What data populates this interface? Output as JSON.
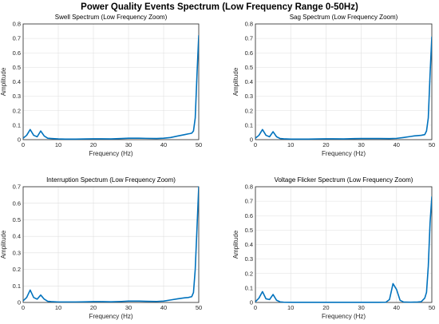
{
  "title": "Power Quality Events Spectrum (Low Frequency Range 0-50Hz)",
  "colors": {
    "line": "#0072BD",
    "grid": "#dfdfdf",
    "axis": "#262626"
  },
  "chart_data": [
    {
      "type": "line",
      "title": "Swell Spectrum (Low Frequency Zoom)",
      "xlabel": "Frequency (Hz)",
      "ylabel": "Amplitude",
      "xlim": [
        0,
        50
      ],
      "ylim": [
        0,
        0.8
      ],
      "xticks": [
        "0",
        "10",
        "20",
        "30",
        "40",
        "50"
      ],
      "yticks": [
        "0",
        "0.1",
        "0.2",
        "0.3",
        "0.4",
        "0.5",
        "0.6",
        "0.7",
        "0.8"
      ],
      "grid": true,
      "series": [
        {
          "x": [
            0,
            1,
            2,
            3,
            4,
            5,
            6,
            7,
            8,
            10,
            12,
            15,
            18,
            20,
            22,
            25,
            28,
            30,
            33,
            35,
            38,
            40,
            42,
            44,
            45,
            46,
            47,
            47.5,
            48,
            48.5,
            49,
            49.5,
            50
          ],
          "y": [
            0.01,
            0.03,
            0.07,
            0.03,
            0.02,
            0.06,
            0.025,
            0.01,
            0.008,
            0.005,
            0.004,
            0.004,
            0.005,
            0.006,
            0.006,
            0.005,
            0.008,
            0.01,
            0.01,
            0.009,
            0.008,
            0.01,
            0.015,
            0.025,
            0.03,
            0.035,
            0.04,
            0.042,
            0.045,
            0.06,
            0.15,
            0.45,
            0.72
          ]
        }
      ]
    },
    {
      "type": "line",
      "title": "Sag Spectrum (Low Frequency Zoom)",
      "xlabel": "Frequency (Hz)",
      "ylabel": "Amplitude",
      "xlim": [
        0,
        50
      ],
      "ylim": [
        0,
        0.8
      ],
      "xticks": [
        "0",
        "10",
        "20",
        "30",
        "40",
        "50"
      ],
      "yticks": [
        "0",
        "0.1",
        "0.2",
        "0.3",
        "0.4",
        "0.5",
        "0.6",
        "0.7",
        "0.8"
      ],
      "grid": true,
      "series": [
        {
          "x": [
            0,
            1,
            2,
            3,
            4,
            5,
            6,
            7,
            8,
            10,
            12,
            15,
            18,
            20,
            22,
            25,
            28,
            30,
            33,
            35,
            38,
            40,
            42,
            44,
            45,
            46,
            47,
            48,
            48.5,
            49,
            49.5,
            50
          ],
          "y": [
            0.01,
            0.03,
            0.07,
            0.03,
            0.02,
            0.055,
            0.02,
            0.008,
            0.006,
            0.004,
            0.004,
            0.004,
            0.005,
            0.006,
            0.006,
            0.005,
            0.007,
            0.008,
            0.008,
            0.008,
            0.007,
            0.009,
            0.015,
            0.022,
            0.026,
            0.028,
            0.03,
            0.035,
            0.06,
            0.15,
            0.45,
            0.71
          ]
        }
      ]
    },
    {
      "type": "line",
      "title": "Interruption Spectrum (Low Frequency Zoom)",
      "xlabel": "Frequency (Hz)",
      "ylabel": "Amplitude",
      "xlim": [
        0,
        50
      ],
      "ylim": [
        0,
        0.7
      ],
      "xticks": [
        "0",
        "10",
        "20",
        "30",
        "40",
        "50"
      ],
      "yticks": [
        "0",
        "0.1",
        "0.2",
        "0.3",
        "0.4",
        "0.5",
        "0.6",
        "0.7"
      ],
      "grid": true,
      "series": [
        {
          "x": [
            0,
            1,
            2,
            3,
            4,
            5,
            6,
            7,
            8,
            10,
            12,
            15,
            18,
            20,
            22,
            25,
            28,
            30,
            33,
            35,
            38,
            40,
            42,
            44,
            45,
            46,
            47,
            48,
            48.5,
            49,
            49.5,
            50
          ],
          "y": [
            0.01,
            0.03,
            0.075,
            0.03,
            0.02,
            0.045,
            0.02,
            0.007,
            0.005,
            0.003,
            0.003,
            0.003,
            0.004,
            0.005,
            0.005,
            0.004,
            0.006,
            0.008,
            0.008,
            0.007,
            0.006,
            0.008,
            0.015,
            0.022,
            0.025,
            0.028,
            0.03,
            0.035,
            0.06,
            0.2,
            0.45,
            0.7
          ]
        }
      ]
    },
    {
      "type": "line",
      "title": "Voltage Flicker Spectrum (Low Frequency Zoom)",
      "xlabel": "Frequency (Hz)",
      "ylabel": "Amplitude",
      "xlim": [
        0,
        50
      ],
      "ylim": [
        0,
        0.8
      ],
      "xticks": [
        "0",
        "10",
        "20",
        "30",
        "40",
        "50"
      ],
      "yticks": [
        "0",
        "0.1",
        "0.2",
        "0.3",
        "0.4",
        "0.5",
        "0.6",
        "0.7",
        "0.8"
      ],
      "grid": true,
      "series": [
        {
          "x": [
            0,
            1,
            2,
            3,
            4,
            5,
            6,
            7,
            8,
            10,
            15,
            20,
            25,
            30,
            35,
            37,
            38,
            39,
            40,
            41,
            42,
            44,
            46,
            47,
            48,
            48.5,
            49,
            49.5,
            50
          ],
          "y": [
            0.005,
            0.03,
            0.075,
            0.025,
            0.02,
            0.055,
            0.015,
            0.004,
            0.002,
            0.001,
            0.001,
            0.001,
            0.001,
            0.001,
            0.001,
            0.002,
            0.02,
            0.13,
            0.09,
            0.015,
            0.003,
            0.002,
            0.003,
            0.005,
            0.03,
            0.07,
            0.25,
            0.55,
            0.73
          ]
        }
      ]
    }
  ]
}
